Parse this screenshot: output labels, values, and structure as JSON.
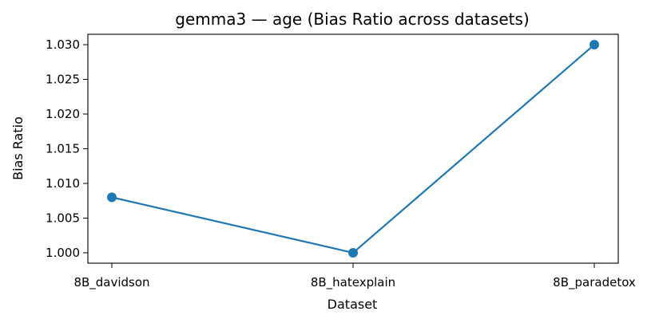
{
  "chart_data": {
    "type": "line",
    "title": "gemma3 — age (Bias Ratio across datasets)",
    "xlabel": "Dataset",
    "ylabel": "Bias Ratio",
    "categories": [
      "8B_davidson",
      "8B_hatexplain",
      "8B_paradetox"
    ],
    "series": [
      {
        "values": [
          1.008,
          1.0,
          1.03
        ]
      }
    ],
    "ylim": [
      0.9985,
      1.0315
    ],
    "yticks": [
      1.0,
      1.005,
      1.01,
      1.015,
      1.02,
      1.025,
      1.03
    ],
    "ytick_labels": [
      "1.000",
      "1.005",
      "1.010",
      "1.015",
      "1.020",
      "1.025",
      "1.030"
    ],
    "grid": false,
    "legend": "none",
    "colors": {
      "line": "#1f77b4",
      "marker": "#1f77b4",
      "axis": "#000000"
    }
  }
}
